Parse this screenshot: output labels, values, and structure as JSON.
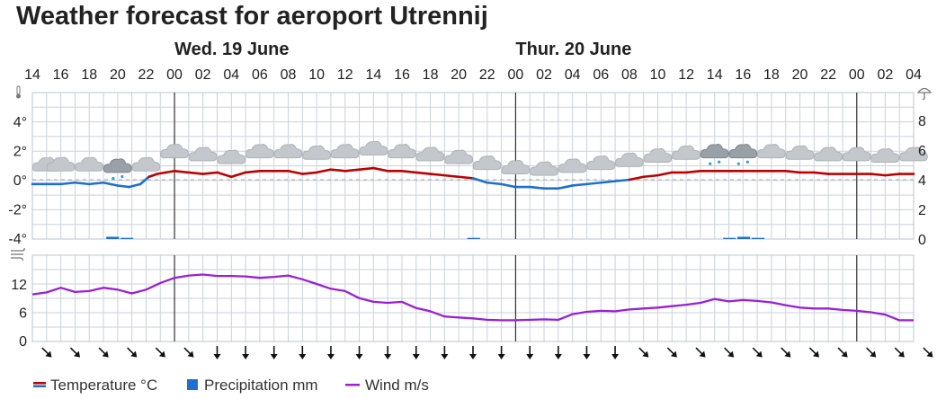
{
  "title": "Weather forecast for aeroport Utrennij",
  "chart_data": {
    "type": "line",
    "days": [
      {
        "label": "Wed. 19 June",
        "at_hour_index": 5
      },
      {
        "label": "Thur. 20 June",
        "at_hour_index": 17
      }
    ],
    "hour_labels": [
      "14",
      "16",
      "18",
      "20",
      "22",
      "00",
      "02",
      "04",
      "06",
      "08",
      "10",
      "12",
      "14",
      "16",
      "18",
      "20",
      "22",
      "00",
      "02",
      "04",
      "06",
      "08",
      "10",
      "12",
      "14",
      "16",
      "18",
      "20",
      "22",
      "00",
      "02",
      "04"
    ],
    "temperature_axis": {
      "ticks": [
        "4°",
        "2°",
        "0°",
        "-2°",
        "-4°"
      ],
      "ylim": [
        -4,
        4
      ]
    },
    "precipitation_axis": {
      "ticks": [
        "8",
        "6",
        "4",
        "2",
        "0"
      ],
      "ylim": [
        0,
        8
      ]
    },
    "wind_axis": {
      "ticks": [
        "12",
        "6",
        "0"
      ],
      "ylim": [
        0,
        18
      ]
    },
    "series": [
      {
        "name": "Temperature °C",
        "x": [
          0,
          0.5,
          1,
          1.5,
          2,
          2.5,
          3,
          3.4,
          3.8,
          4.1,
          4.4,
          4.7,
          5,
          5.5,
          6,
          6.5,
          7,
          7.5,
          8,
          8.5,
          9,
          9.5,
          10,
          10.5,
          11,
          11.5,
          12,
          12.5,
          13,
          13.5,
          14,
          14.5,
          15,
          15.5,
          16,
          16.5,
          17,
          17.5,
          18,
          18.5,
          19,
          19.5,
          20,
          20.5,
          21,
          21.5,
          22,
          22.5,
          23,
          23.5,
          24,
          24.5,
          25,
          25.5,
          26,
          26.5,
          27,
          27.5,
          28,
          28.5,
          29,
          29.5,
          30,
          30.5,
          31
        ],
        "values": [
          -0.3,
          -0.3,
          -0.3,
          -0.2,
          -0.3,
          -0.2,
          -0.4,
          -0.5,
          -0.3,
          0.2,
          0.4,
          0.5,
          0.6,
          0.5,
          0.4,
          0.5,
          0.2,
          0.5,
          0.6,
          0.6,
          0.6,
          0.4,
          0.5,
          0.7,
          0.6,
          0.7,
          0.8,
          0.6,
          0.6,
          0.5,
          0.4,
          0.3,
          0.2,
          0.1,
          -0.2,
          -0.3,
          -0.5,
          -0.5,
          -0.6,
          -0.6,
          -0.4,
          -0.3,
          -0.2,
          -0.1,
          0.0,
          0.2,
          0.3,
          0.5,
          0.5,
          0.6,
          0.6,
          0.6,
          0.6,
          0.6,
          0.6,
          0.6,
          0.5,
          0.5,
          0.4,
          0.4,
          0.4,
          0.4,
          0.3,
          0.4,
          0.4
        ]
      },
      {
        "name": "Precipitation mm",
        "bars": [
          {
            "x": 2.6,
            "w": 0.45,
            "v": 0.15
          },
          {
            "x": 3.1,
            "w": 0.45,
            "v": 0.08
          },
          {
            "x": 15.3,
            "w": 0.45,
            "v": 0.08
          },
          {
            "x": 24.3,
            "w": 0.45,
            "v": 0.08
          },
          {
            "x": 24.8,
            "w": 0.45,
            "v": 0.15
          },
          {
            "x": 25.3,
            "w": 0.45,
            "v": 0.08
          }
        ]
      },
      {
        "name": "Wind m/s",
        "x": [
          0,
          0.5,
          1,
          1.5,
          2,
          2.5,
          3,
          3.5,
          4,
          4.5,
          5,
          5.5,
          6,
          6.5,
          7,
          7.5,
          8,
          8.5,
          9,
          9.5,
          10,
          10.5,
          11,
          11.5,
          12,
          12.5,
          13,
          13.5,
          14,
          14.5,
          15,
          15.5,
          16,
          16.5,
          17,
          17.5,
          18,
          18.5,
          19,
          19.5,
          20,
          20.5,
          21,
          21.5,
          22,
          22.5,
          23,
          23.5,
          24,
          24.5,
          25,
          25.5,
          26,
          26.5,
          27,
          27.5,
          28,
          28.5,
          29,
          29.5,
          30,
          30.5,
          31
        ],
        "values": [
          9.8,
          10.2,
          11.2,
          10.3,
          10.5,
          11.2,
          10.8,
          10.0,
          10.8,
          12.2,
          13.3,
          13.8,
          14.0,
          13.7,
          13.7,
          13.6,
          13.3,
          13.5,
          13.8,
          13.0,
          12.0,
          11.0,
          10.5,
          9.0,
          8.2,
          8.0,
          8.2,
          6.9,
          6.2,
          5.1,
          4.9,
          4.7,
          4.4,
          4.3,
          4.3,
          4.4,
          4.5,
          4.4,
          5.6,
          6.1,
          6.3,
          6.2,
          6.6,
          6.8,
          7.0,
          7.3,
          7.6,
          8.0,
          8.8,
          8.3,
          8.6,
          8.4,
          8.1,
          7.5,
          7.0,
          6.8,
          6.8,
          6.5,
          6.3,
          6.0,
          5.5,
          4.3,
          4.3
        ]
      }
    ],
    "weather_icons": [
      "cloud",
      "cloud",
      "cloud",
      "cloud-snow",
      "cloud",
      "cloud",
      "cloud",
      "cloud",
      "cloud",
      "cloud",
      "cloud",
      "cloud",
      "cloud",
      "cloud",
      "cloud",
      "cloud",
      "cloud",
      "cloud",
      "cloud",
      "cloud",
      "cloud",
      "cloud",
      "cloud",
      "cloud",
      "cloud-snow",
      "cloud-snow",
      "cloud",
      "cloud",
      "cloud",
      "cloud",
      "cloud",
      "cloud"
    ],
    "wind_directions_deg": [
      315,
      315,
      315,
      315,
      315,
      315,
      360,
      360,
      360,
      360,
      360,
      360,
      360,
      360,
      360,
      360,
      360,
      360,
      360,
      360,
      360,
      315,
      315,
      315,
      315,
      315,
      315,
      315,
      315,
      315,
      315,
      315
    ],
    "colors": {
      "temp_warm": "#c00000",
      "temp_cold": "#1e6fd0",
      "precip": "#1e6fd0",
      "wind": "#9b1fd6",
      "grid": "#c8d2dc"
    }
  },
  "legend": {
    "temperature": "Temperature °C",
    "precipitation": "Precipitation mm",
    "wind": "Wind m/s"
  }
}
